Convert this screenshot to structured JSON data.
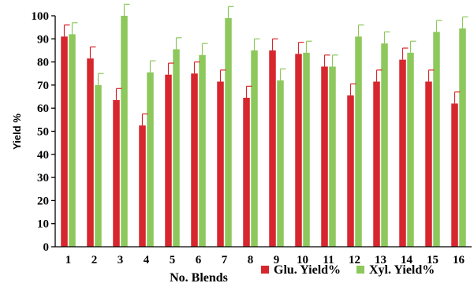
{
  "chart_data": {
    "type": "bar",
    "title": "",
    "xlabel": "No. Blends",
    "ylabel": "Yield %",
    "ylim": [
      0,
      100
    ],
    "yticks": [
      0,
      10,
      20,
      30,
      40,
      50,
      60,
      70,
      80,
      90,
      100
    ],
    "grid": false,
    "legend_position": "bottom-right",
    "categories": [
      "1",
      "2",
      "3",
      "4",
      "5",
      "6",
      "7",
      "8",
      "9",
      "10",
      "11",
      "12",
      "13",
      "14",
      "15",
      "16"
    ],
    "series": [
      {
        "name": "Glu. Yield%",
        "color": "#d7262e",
        "values": [
          91,
          81.5,
          63.5,
          52.5,
          74.5,
          75,
          71.5,
          64.5,
          85,
          83.5,
          78,
          65.5,
          71.5,
          81,
          71.5,
          62
        ],
        "errors": [
          5,
          5,
          5,
          5,
          5,
          5,
          5,
          5,
          5,
          5,
          5,
          5,
          5,
          5,
          5,
          5
        ]
      },
      {
        "name": "Xyl. Yield%",
        "color": "#8dc85c",
        "values": [
          92,
          70,
          100,
          75.5,
          85.5,
          83,
          99,
          85,
          72,
          84,
          78,
          91,
          88,
          84,
          93,
          94.5
        ],
        "errors": [
          5,
          5,
          5,
          5,
          5,
          5,
          5,
          5,
          5,
          5,
          5,
          5,
          5,
          5,
          5,
          5
        ]
      }
    ]
  }
}
